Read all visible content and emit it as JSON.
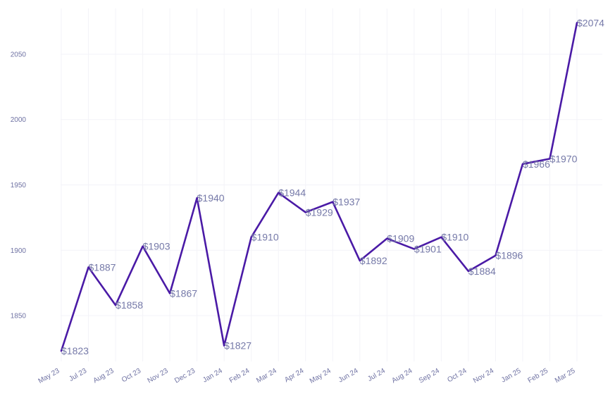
{
  "chart_data": {
    "type": "line",
    "title": "",
    "xlabel": "",
    "ylabel": "",
    "categories": [
      "May 23",
      "Jul 23",
      "Aug 23",
      "Oct 23",
      "Nov 23",
      "Dec 23",
      "Jan 24",
      "Feb 24",
      "Mar 24",
      "Apr 24",
      "May 24",
      "Jun 24",
      "Jul 24",
      "Aug 24",
      "Sep 24",
      "Oct 24",
      "Nov 24",
      "Jan 25",
      "Feb 25",
      "Mar 25"
    ],
    "series": [
      {
        "values": [
          1823,
          1887,
          1858,
          1903,
          1867,
          1940,
          1827,
          1910,
          1944,
          1929,
          1937,
          1892,
          1909,
          1901,
          1910,
          1884,
          1896,
          1966,
          1970,
          2074
        ],
        "labels": [
          "$1823",
          "$1887",
          "$1858",
          "$1903",
          "$1867",
          "$1940",
          "$1827",
          "$1910",
          "$1944",
          "$1929",
          "$1937",
          "$1892",
          "$1909",
          "$1901",
          "$1910",
          "$1884",
          "$1896",
          "$1966",
          "$1970",
          "$2074"
        ],
        "color": "#4a1aa6"
      }
    ],
    "y_ticks": [
      1850,
      1900,
      1950,
      2000,
      2050
    ],
    "ylim": [
      1815,
      2085
    ],
    "grid": true,
    "legend": "none",
    "colors": {
      "line": "#4a1aa6",
      "labels": "#7579a8",
      "ticks": "#6f72a3",
      "grid": "#f3f3f8"
    }
  }
}
